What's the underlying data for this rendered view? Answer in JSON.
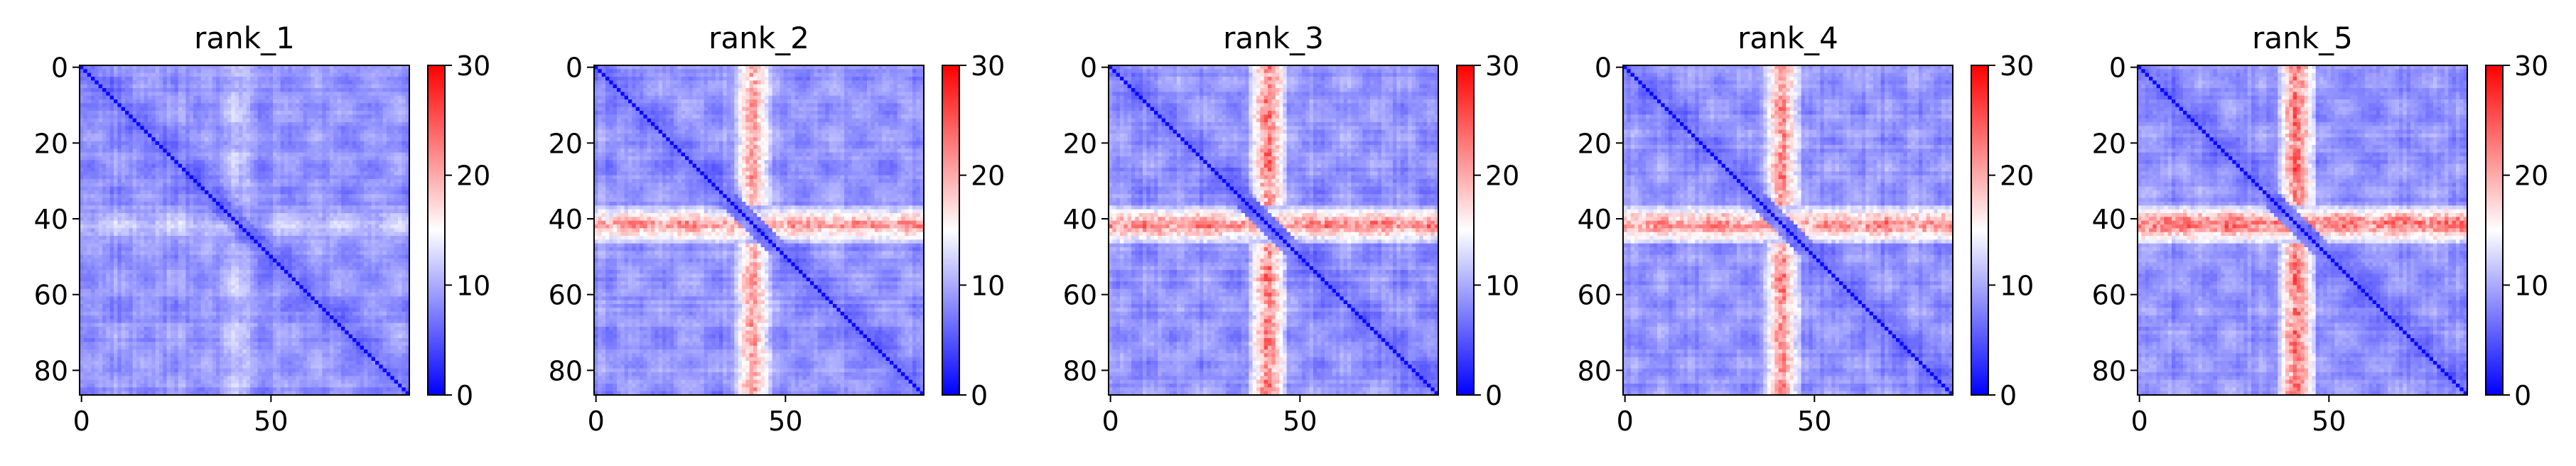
{
  "chart_data": [
    {
      "type": "heatmap",
      "title": "rank_1",
      "x_ticks": [
        0,
        50
      ],
      "y_ticks": [
        0,
        20,
        40,
        60,
        80
      ],
      "n": 87,
      "colorbar": {
        "ticks": [
          0,
          10,
          20,
          30
        ],
        "range": [
          0,
          30
        ],
        "colormap": "bwr"
      },
      "band": {
        "rows": [
          37,
          46
        ],
        "peak": 9
      }
    },
    {
      "type": "heatmap",
      "title": "rank_2",
      "x_ticks": [
        0,
        50
      ],
      "y_ticks": [
        0,
        20,
        40,
        60,
        80
      ],
      "n": 87,
      "colorbar": {
        "ticks": [
          0,
          10,
          20,
          30
        ],
        "range": [
          0,
          30
        ],
        "colormap": "bwr"
      },
      "band": {
        "rows": [
          37,
          46
        ],
        "peak": 19
      }
    },
    {
      "type": "heatmap",
      "title": "rank_3",
      "x_ticks": [
        0,
        50
      ],
      "y_ticks": [
        0,
        20,
        40,
        60,
        80
      ],
      "n": 87,
      "colorbar": {
        "ticks": [
          0,
          10,
          20,
          30
        ],
        "range": [
          0,
          30
        ],
        "colormap": "bwr"
      },
      "band": {
        "rows": [
          37,
          46
        ],
        "peak": 21
      }
    },
    {
      "type": "heatmap",
      "title": "rank_4",
      "x_ticks": [
        0,
        50
      ],
      "y_ticks": [
        0,
        20,
        40,
        60,
        80
      ],
      "n": 87,
      "colorbar": {
        "ticks": [
          0,
          10,
          20,
          30
        ],
        "range": [
          0,
          30
        ],
        "colormap": "bwr"
      },
      "band": {
        "rows": [
          37,
          46
        ],
        "peak": 20
      }
    },
    {
      "type": "heatmap",
      "title": "rank_5",
      "x_ticks": [
        0,
        50
      ],
      "y_ticks": [
        0,
        20,
        40,
        60,
        80
      ],
      "n": 87,
      "colorbar": {
        "ticks": [
          0,
          10,
          20,
          30
        ],
        "range": [
          0,
          30
        ],
        "colormap": "bwr"
      },
      "band": {
        "rows": [
          37,
          46
        ],
        "peak": 22
      }
    }
  ]
}
